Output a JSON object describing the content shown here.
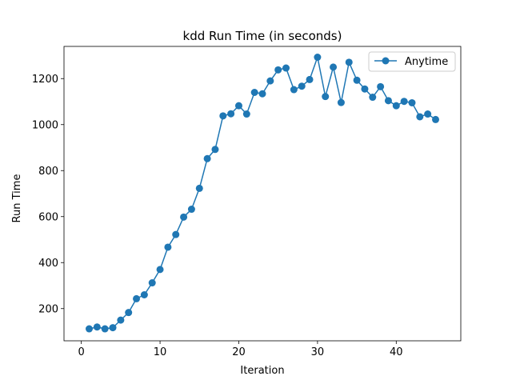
{
  "chart_data": {
    "type": "line",
    "title": "kdd Run Time (in seconds)",
    "xlabel": "Iteration",
    "ylabel": "Run Time",
    "xlim": [
      -2.2,
      48.2
    ],
    "ylim": [
      60,
      1340
    ],
    "xticks": [
      0,
      10,
      20,
      30,
      40
    ],
    "yticks": [
      200,
      400,
      600,
      800,
      1000,
      1200
    ],
    "grid": false,
    "legend_position": "top-right",
    "series": [
      {
        "name": "Anytime",
        "color": "#1f77b4",
        "marker": "circle",
        "x": [
          1,
          2,
          3,
          4,
          5,
          6,
          7,
          8,
          9,
          10,
          11,
          12,
          13,
          14,
          15,
          16,
          17,
          18,
          19,
          20,
          21,
          22,
          23,
          24,
          25,
          26,
          27,
          28,
          29,
          30,
          31,
          32,
          33,
          34,
          35,
          36,
          37,
          38,
          39,
          40,
          41,
          42,
          43,
          44,
          45
        ],
        "y": [
          112,
          120,
          112,
          117,
          150,
          183,
          243,
          260,
          312,
          370,
          467,
          522,
          598,
          632,
          723,
          852,
          892,
          1038,
          1047,
          1082,
          1046,
          1140,
          1134,
          1190,
          1238,
          1246,
          1152,
          1167,
          1196,
          1293,
          1122,
          1250,
          1096,
          1271,
          1193,
          1155,
          1119,
          1165,
          1104,
          1082,
          1101,
          1095,
          1034,
          1046,
          1022
        ]
      }
    ]
  }
}
